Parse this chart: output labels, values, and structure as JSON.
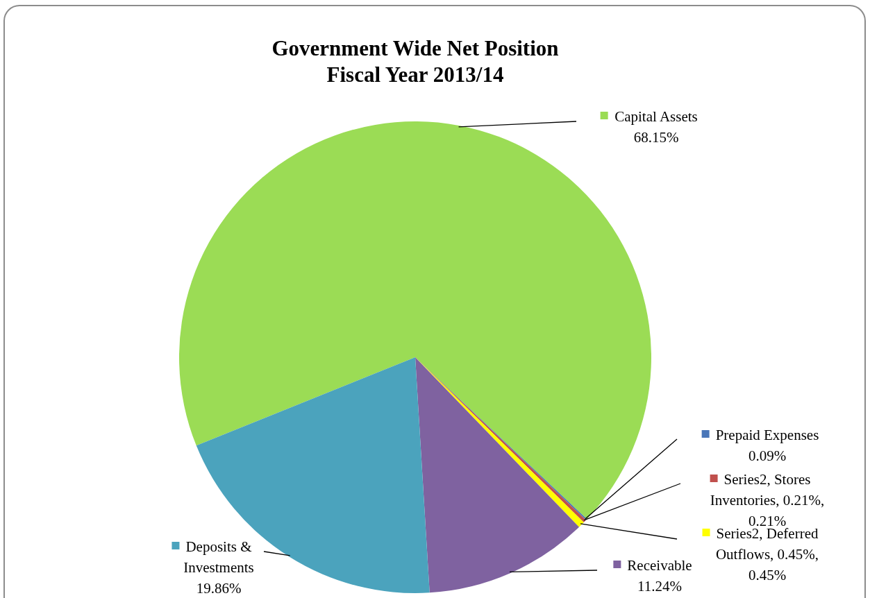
{
  "chart_data": {
    "type": "pie",
    "title": "Government Wide Net Position",
    "subtitle": "Fiscal Year 2013/14",
    "categories": [
      "Capital Assets",
      "Prepaid Expenses",
      "Series2, Stores Inventories",
      "Series2, Deferred Outflows",
      "Receivable",
      "Deposits & Investments"
    ],
    "values": [
      68.15,
      0.09,
      0.21,
      0.45,
      11.24,
      19.86
    ],
    "value_labels": [
      "68.15%",
      "0.09%",
      "0.21%, 0.21%",
      "0.45%, 0.45%",
      "11.24%",
      "19.86%"
    ],
    "colors": [
      "#9bdc55",
      "#4a76b8",
      "#c0504d",
      "#ffff00",
      "#7f62a0",
      "#4ba3bd"
    ],
    "legend": "right"
  }
}
